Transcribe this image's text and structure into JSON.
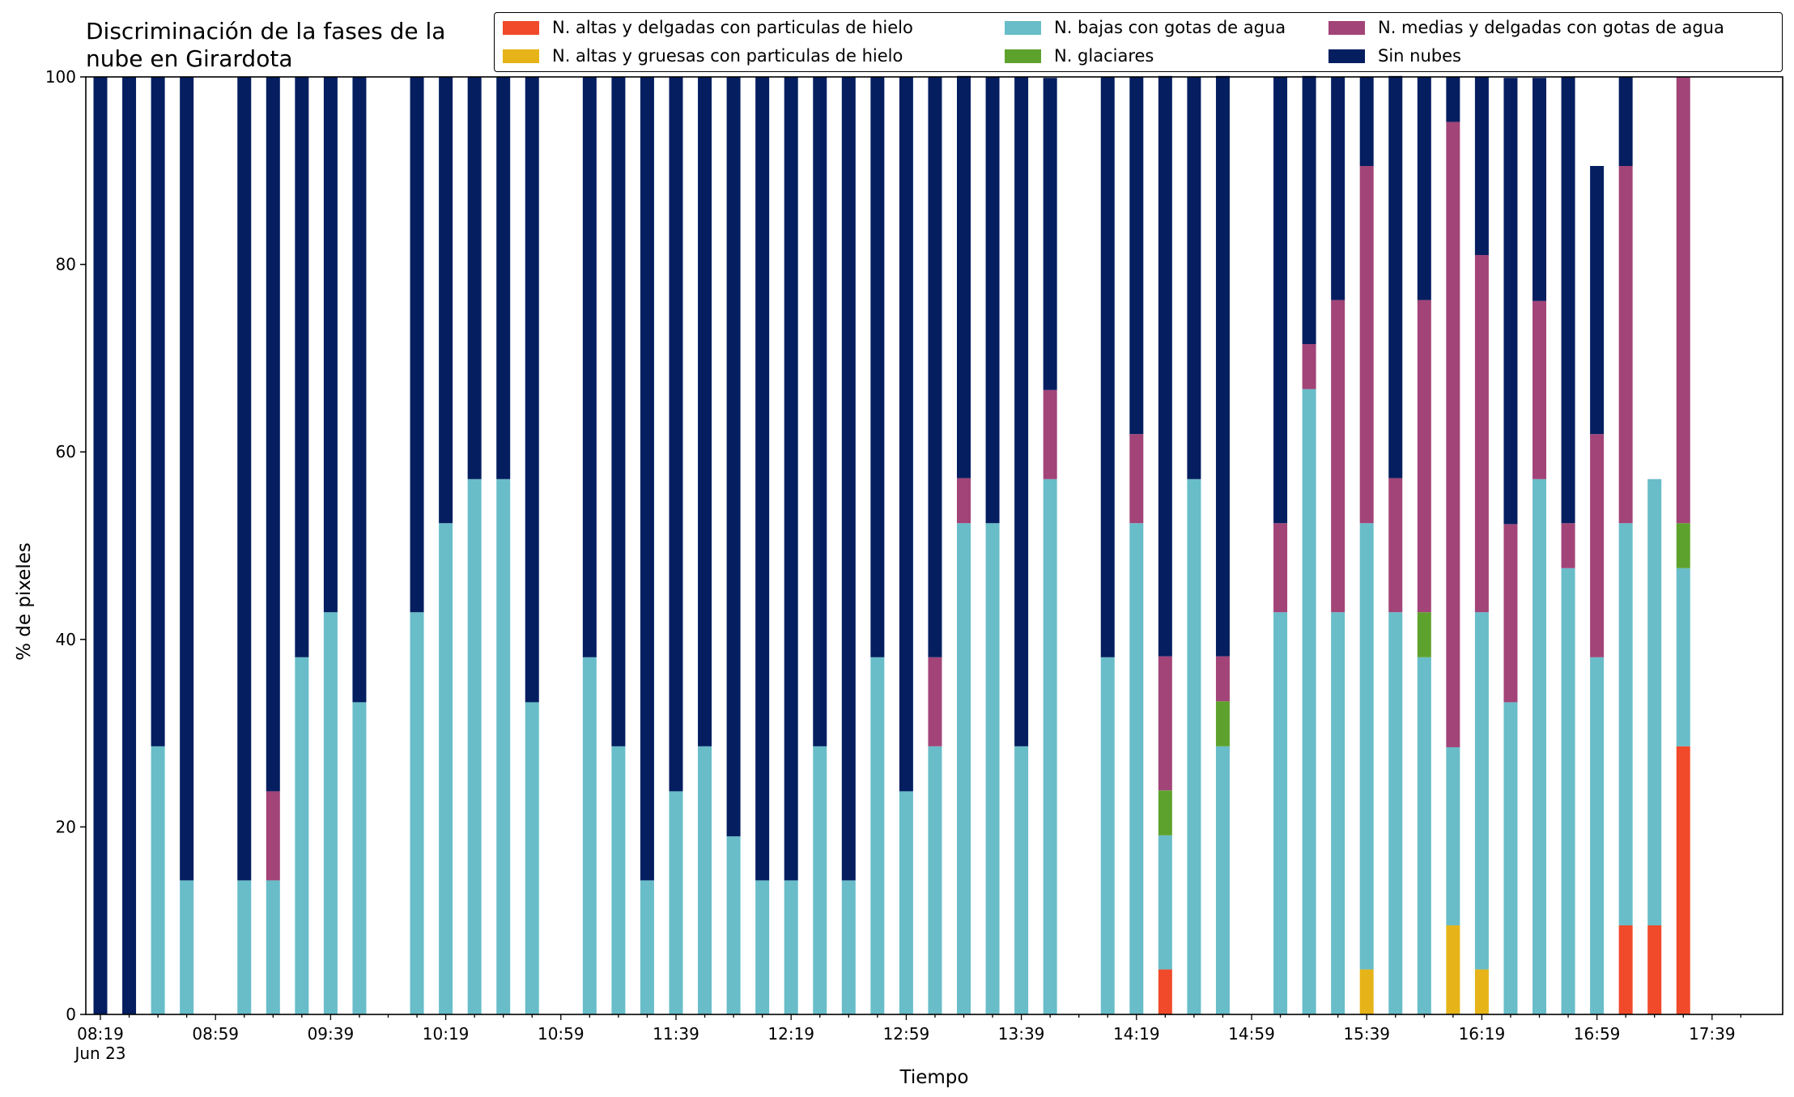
{
  "chart_data": {
    "type": "bar",
    "stacked": true,
    "title": "Discriminación de la fases de la\nnube en Girardota",
    "xlabel": "Tiempo",
    "ylabel": "% de pixeles",
    "ylim": [
      0,
      100
    ],
    "yticks": [
      0,
      20,
      40,
      60,
      80,
      100
    ],
    "grid": false,
    "legend_position": "top",
    "x_tick_labels": [
      "08:19",
      "08:59",
      "09:39",
      "10:19",
      "10:59",
      "11:39",
      "12:19",
      "12:59",
      "13:39",
      "14:19",
      "14:59",
      "15:39",
      "16:19",
      "16:59",
      "17:39"
    ],
    "x_date_label": "Jun 23",
    "categories": [
      "08:19",
      "08:29",
      "08:39",
      "08:49",
      "08:59",
      "09:09",
      "09:19",
      "09:29",
      "09:39",
      "09:49",
      "09:59",
      "10:09",
      "10:19",
      "10:29",
      "10:39",
      "10:49",
      "10:59",
      "11:09",
      "11:19",
      "11:29",
      "11:39",
      "11:49",
      "11:59",
      "12:09",
      "12:19",
      "12:29",
      "12:39",
      "12:49",
      "12:59",
      "13:09",
      "13:19",
      "13:29",
      "13:39",
      "13:49",
      "13:59",
      "14:09",
      "14:19",
      "14:29",
      "14:39",
      "14:49",
      "14:59",
      "15:09",
      "15:19",
      "15:29",
      "15:39",
      "15:49",
      "15:59",
      "16:09",
      "16:19",
      "16:29",
      "16:39",
      "16:49",
      "16:59",
      "17:09",
      "17:19",
      "17:29",
      "17:39",
      "17:49"
    ],
    "series": [
      {
        "name": "N. altas y delgadas con particulas de hielo",
        "color": "#f04a2a",
        "values": [
          0,
          0,
          0,
          0,
          0,
          0,
          0,
          0,
          0,
          0,
          0,
          0,
          0,
          0,
          0,
          0,
          0,
          0,
          0,
          0,
          0,
          0,
          0,
          0,
          0,
          0,
          0,
          0,
          0,
          0,
          0,
          0,
          0,
          0,
          0,
          0,
          0,
          4.8,
          0,
          0,
          0,
          0,
          0,
          0,
          0,
          0,
          0,
          0,
          0,
          0,
          0,
          0,
          0,
          9.5,
          9.5,
          28.6,
          0,
          0
        ]
      },
      {
        "name": "N. altas y gruesas con particulas de hielo",
        "color": "#e6b418",
        "values": [
          0,
          0,
          0,
          0,
          0,
          0,
          0,
          0,
          0,
          0,
          0,
          0,
          0,
          0,
          0,
          0,
          0,
          0,
          0,
          0,
          0,
          0,
          0,
          0,
          0,
          0,
          0,
          0,
          0,
          0,
          0,
          0,
          0,
          0,
          0,
          0,
          0,
          0,
          0,
          0,
          0,
          0,
          0,
          0,
          4.8,
          0,
          0,
          9.5,
          4.8,
          0,
          0,
          0,
          0,
          0,
          0,
          0,
          0,
          0
        ]
      },
      {
        "name": "N. bajas con gotas de agua",
        "color": "#68bdc9",
        "values": [
          0,
          0,
          28.6,
          14.3,
          0,
          14.3,
          14.3,
          38.1,
          42.9,
          33.3,
          0,
          42.9,
          52.4,
          57.1,
          57.1,
          33.3,
          0,
          38.1,
          28.6,
          14.3,
          23.8,
          28.6,
          19.0,
          14.3,
          14.3,
          28.6,
          14.3,
          38.1,
          23.8,
          28.6,
          52.4,
          52.4,
          28.6,
          57.1,
          0,
          38.1,
          52.4,
          14.3,
          57.1,
          28.6,
          0,
          42.9,
          66.7,
          42.9,
          47.6,
          42.9,
          38.1,
          19.0,
          38.1,
          33.3,
          57.1,
          47.6,
          38.1,
          42.9,
          47.6,
          19.0,
          0,
          0
        ]
      },
      {
        "name": "N. glaciares",
        "color": "#5ea22e",
        "values": [
          0,
          0,
          0,
          0,
          0,
          0,
          0,
          0,
          0,
          0,
          0,
          0,
          0,
          0,
          0,
          0,
          0,
          0,
          0,
          0,
          0,
          0,
          0,
          0,
          0,
          0,
          0,
          0,
          0,
          0,
          0,
          0,
          0,
          0,
          0,
          0,
          0,
          4.8,
          0,
          4.8,
          0,
          0,
          0,
          0,
          0,
          0,
          4.8,
          0,
          0,
          0,
          0,
          0,
          0,
          0,
          0,
          4.8,
          0,
          0
        ]
      },
      {
        "name": "N. medias y delgadas con gotas de agua",
        "color": "#a24478",
        "values": [
          0,
          0,
          0,
          0,
          0,
          0,
          9.5,
          0,
          0,
          0,
          0,
          0,
          0,
          0,
          0,
          0,
          0,
          0,
          0,
          0,
          0,
          0,
          0,
          0,
          0,
          0,
          0,
          0,
          0,
          9.5,
          4.8,
          0,
          0,
          9.5,
          0,
          0,
          9.5,
          14.3,
          0,
          4.8,
          0,
          9.5,
          4.8,
          33.3,
          38.1,
          14.3,
          33.3,
          66.7,
          38.1,
          19.0,
          19.0,
          4.8,
          23.8,
          38.1,
          0,
          47.6,
          0,
          0
        ]
      },
      {
        "name": "Sin nubes",
        "color": "#041e60",
        "values": [
          100,
          100,
          71.4,
          85.7,
          0,
          85.7,
          76.2,
          61.9,
          57.1,
          66.7,
          0,
          57.1,
          47.6,
          42.9,
          42.9,
          66.7,
          0,
          61.9,
          71.4,
          85.7,
          76.2,
          71.4,
          81.0,
          85.7,
          85.7,
          71.4,
          85.7,
          61.9,
          76.2,
          61.9,
          42.9,
          47.6,
          71.4,
          33.3,
          0,
          61.9,
          38.1,
          61.9,
          42.9,
          61.9,
          0,
          47.6,
          28.6,
          23.8,
          9.5,
          42.9,
          23.8,
          4.8,
          19.0,
          47.6,
          23.8,
          47.6,
          28.6,
          9.5,
          0,
          0,
          0,
          0
        ]
      }
    ]
  }
}
